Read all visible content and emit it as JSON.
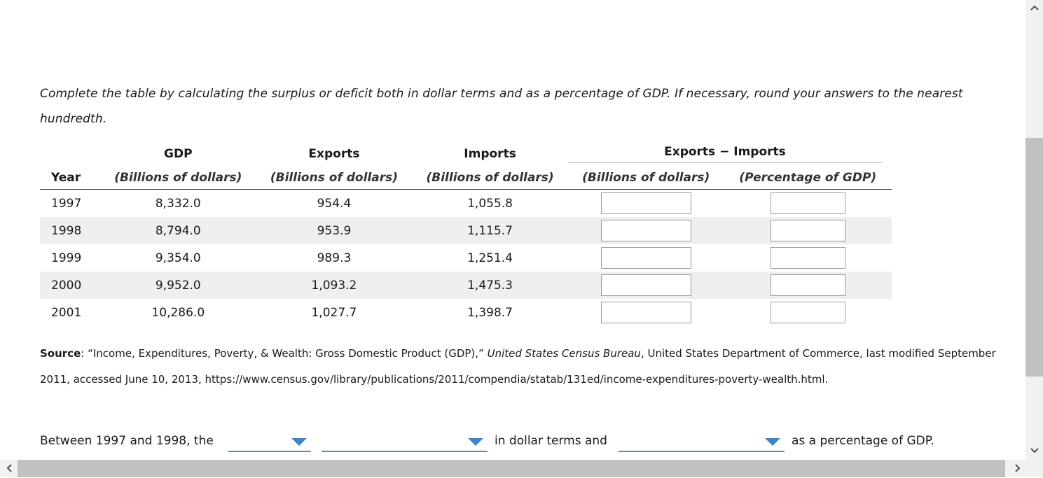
{
  "instructions": "Complete the table by calculating the surplus or deficit both in dollar terms and as a percentage of GDP. If necessary, round your answers to the nearest hundredth.",
  "table": {
    "headers": {
      "gdp": "GDP",
      "exports": "Exports",
      "imports": "Imports",
      "diff_group": "Exports − Imports",
      "year": "Year",
      "gdp_unit": "(Billions of dollars)",
      "exports_unit": "(Billions of dollars)",
      "imports_unit": "(Billions of dollars)",
      "diff_dollar_unit": "(Billions of dollars)",
      "diff_pct_unit": "(Percentage of GDP)"
    },
    "rows": [
      {
        "year": "1997",
        "gdp": "8,332.0",
        "exports": "954.4",
        "imports": "1,055.8",
        "diff_dollars": "",
        "diff_pct": ""
      },
      {
        "year": "1998",
        "gdp": "8,794.0",
        "exports": "953.9",
        "imports": "1,115.7",
        "diff_dollars": "",
        "diff_pct": ""
      },
      {
        "year": "1999",
        "gdp": "9,354.0",
        "exports": "989.3",
        "imports": "1,251.4",
        "diff_dollars": "",
        "diff_pct": ""
      },
      {
        "year": "2000",
        "gdp": "9,952.0",
        "exports": "1,093.2",
        "imports": "1,475.3",
        "diff_dollars": "",
        "diff_pct": ""
      },
      {
        "year": "2001",
        "gdp": "10,286.0",
        "exports": "1,027.7",
        "imports": "1,398.7",
        "diff_dollars": "",
        "diff_pct": ""
      }
    ]
  },
  "source": {
    "label": "Source",
    "colon": ":",
    "title": " “Income, Expenditures, Poverty, & Wealth: Gross Domestic Product (GDP),” ",
    "publisher": "United States Census Bureau",
    "rest": ", United States Department of Commerce, last modified September 2011, accessed June 10, 2013, https://www.census.gov/library/publications/2011/compendia/statab/131ed/income-expenditures-poverty-wealth.html."
  },
  "sentence": {
    "part1": "Between 1997 and 1998, the",
    "part2": "in dollar terms and",
    "part3": "as a percentage of GDP.",
    "dropdown1_value": "",
    "dropdown2_value": "",
    "dropdown3_value": ""
  },
  "scrollbars": {
    "up_icon": "chevron-up",
    "down_icon": "chevron-down",
    "left_icon": "chevron-left",
    "right_icon": "chevron-right"
  }
}
